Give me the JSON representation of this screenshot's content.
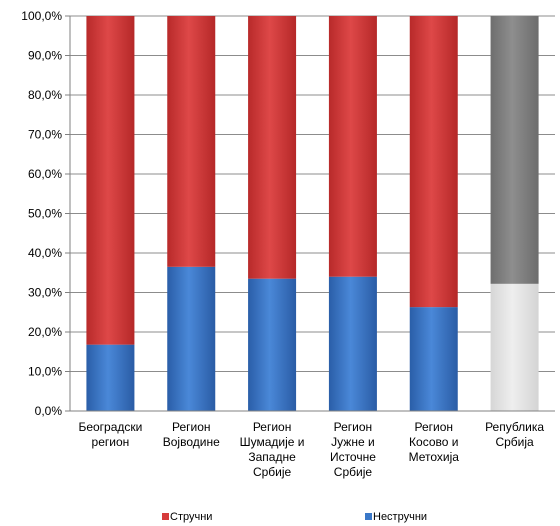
{
  "chart_data": {
    "type": "bar",
    "stacked": true,
    "percent": true,
    "categories": [
      [
        "Београдски",
        "регион"
      ],
      [
        "Регион",
        "Војводине"
      ],
      [
        "Регион",
        "Шумадије и",
        "Западне",
        "Србије"
      ],
      [
        "Регион",
        "Јужне и",
        "Источне",
        "Србије"
      ],
      [
        "Регион",
        "Косово и",
        "Метохија"
      ],
      [
        "Република",
        "Србија"
      ]
    ],
    "series": [
      {
        "name": "Нестручни",
        "values": [
          16.8,
          36.5,
          33.5,
          34.0,
          26.3,
          32.2
        ]
      },
      {
        "name": "Стручни",
        "values": [
          83.2,
          63.5,
          66.5,
          66.0,
          73.7,
          67.8
        ]
      }
    ],
    "ylim": [
      0,
      100
    ],
    "yticks": [
      "0,0%",
      "10,0%",
      "20,0%",
      "30,0%",
      "40,0%",
      "50,0%",
      "60,0%",
      "70,0%",
      "80,0%",
      "90,0%",
      "100,0%"
    ],
    "grid": true,
    "legend_position": "bottom",
    "colors": {
      "Стручни": "#d63b3b",
      "Нестручни": "#3a78c8",
      "highlight_Стручни": "#808080",
      "highlight_Нестручни": "#e4e4e4"
    },
    "highlighted_category_index": 5
  }
}
